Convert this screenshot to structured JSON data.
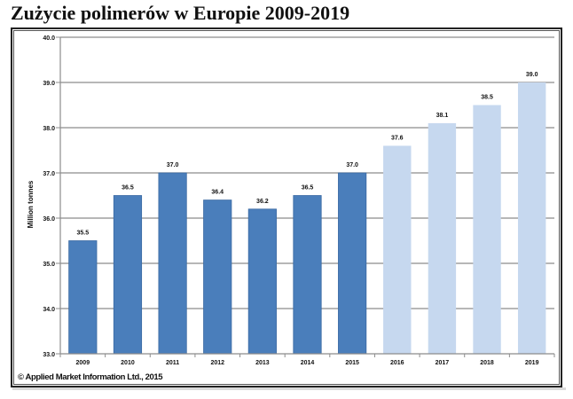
{
  "title": "Zużycie polimerów w Europie 2009-2019",
  "footer": "© Applied Market Information Ltd., 2015",
  "colors": {
    "actual": "#4a7ebb",
    "actual_edge": "#3b6aa3",
    "forecast": "#c6d8ef",
    "gridline": "#8c8c8c",
    "axis": "#8c8c8c"
  },
  "chart_data": {
    "type": "bar",
    "title": "Zużycie polimerów w Europie 2009-2019",
    "xlabel": "",
    "ylabel": "Million tonnes",
    "ylim": [
      33.0,
      40.0
    ],
    "yticks": [
      33.0,
      34.0,
      35.0,
      36.0,
      37.0,
      38.0,
      39.0,
      40.0
    ],
    "ytick_labels": [
      "33.0",
      "34.0",
      "35.0",
      "36.0",
      "37.0",
      "38.0",
      "39.0",
      "40.0"
    ],
    "grid": true,
    "legend": "none",
    "categories": [
      "2009",
      "2010",
      "2011",
      "2012",
      "2013",
      "2014",
      "2015",
      "2016",
      "2017",
      "2018",
      "2019"
    ],
    "values": [
      35.5,
      36.5,
      37.0,
      36.4,
      36.2,
      36.5,
      37.0,
      37.6,
      38.1,
      38.5,
      39.0
    ],
    "data_labels": [
      "35.5",
      "36.5",
      "37.0",
      "36.4",
      "36.2",
      "36.5",
      "37.0",
      "37.6",
      "38.1",
      "38.5",
      "39.0"
    ],
    "bar_kind": [
      "actual",
      "actual",
      "actual",
      "actual",
      "actual",
      "actual",
      "actual",
      "forecast",
      "forecast",
      "forecast",
      "forecast"
    ],
    "annotations": [
      "© Applied Market Information Ltd., 2015"
    ]
  }
}
